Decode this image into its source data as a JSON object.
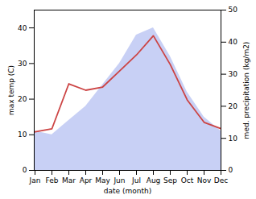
{
  "chart_data": {
    "type": "line",
    "categories": [
      "Jan",
      "Feb",
      "Mar",
      "Apr",
      "May",
      "Jun",
      "Jul",
      "Aug",
      "Sep",
      "Oct",
      "Nov",
      "Dec"
    ],
    "series": [
      {
        "type": "area",
        "color": "#c8d0f5",
        "values": [
          11,
          10,
          14,
          18,
          24,
          30,
          38,
          40,
          32,
          22,
          15,
          11
        ]
      },
      {
        "type": "line",
        "color": "#cc4444",
        "axis": "y2",
        "values": [
          12,
          13,
          27,
          25,
          26,
          31,
          36,
          42,
          33,
          22,
          15,
          13
        ]
      }
    ],
    "xlabel": "date (month)",
    "ylabel": "max temp (C)",
    "y2label": "med. precipitation (kg/m2)",
    "ylim": [
      0,
      45
    ],
    "yticks": [
      0,
      10,
      20,
      30,
      40
    ],
    "y2lim": [
      0,
      50
    ],
    "y2ticks": [
      0,
      10,
      20,
      30,
      40,
      50
    ],
    "grid": false
  }
}
